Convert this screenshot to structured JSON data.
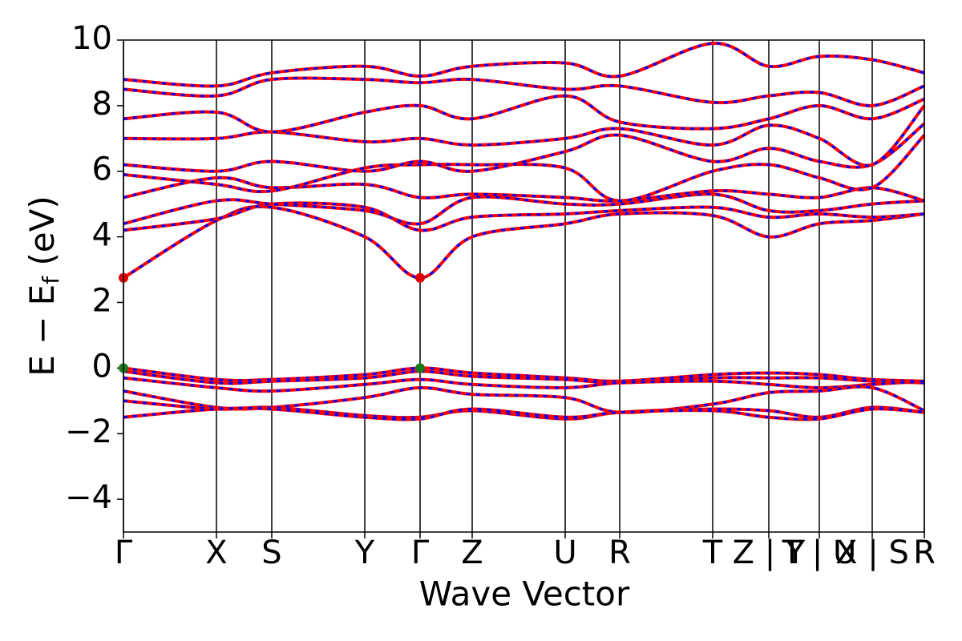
{
  "chart_data": {
    "type": "band",
    "xlabel": "Wave Vector",
    "ylabel": [
      "E − E",
      "f",
      " (eV)"
    ],
    "xlim": [
      0,
      9.99
    ],
    "ylim": [
      -5,
      10
    ],
    "yticks": [
      {
        "value": -4,
        "label": "−4"
      },
      {
        "value": -2,
        "label": "−2"
      },
      0,
      2,
      4,
      6,
      8,
      10
    ],
    "xticks": [
      {
        "value": 0,
        "label": "Γ"
      },
      {
        "value": 1.16,
        "label": "X"
      },
      {
        "value": 1.85,
        "label": "S"
      },
      {
        "value": 3.01,
        "label": "Y"
      },
      {
        "value": 3.7,
        "label": "Γ"
      },
      {
        "value": 4.35,
        "label": "Z"
      },
      {
        "value": 5.51,
        "label": "U"
      },
      {
        "value": 6.19,
        "label": "R"
      },
      {
        "value": 7.35,
        "label": "T"
      },
      {
        "value": 8.05,
        "label": "Z | Y"
      },
      {
        "value": 8.68,
        "label": "T | U"
      },
      {
        "value": 9.34,
        "label": "X | S"
      },
      {
        "value": 9.99,
        "label": "R"
      }
    ],
    "x": [
      0,
      1.16,
      1.85,
      3.01,
      3.7,
      4.35,
      5.51,
      6.19,
      7.35,
      8.05,
      8.68,
      9.34,
      9.99
    ],
    "line_color": "#ff0000",
    "dash_color": "#0000ff",
    "series": [
      {
        "values": [
          0,
          -0.35,
          -0.35,
          -0.2,
          0,
          -0.15,
          -0.3,
          -0.4,
          -0.2,
          -0.15,
          -0.2,
          -0.35,
          -0.4
        ]
      },
      {
        "values": [
          -0.1,
          -0.45,
          -0.4,
          -0.3,
          -0.1,
          -0.25,
          -0.35,
          -0.45,
          -0.3,
          -0.3,
          -0.3,
          -0.4,
          -0.45
        ]
      },
      {
        "values": [
          -0.3,
          -0.6,
          -0.7,
          -0.5,
          -0.35,
          -0.5,
          -0.6,
          -0.45,
          -0.4,
          -0.5,
          -0.6,
          -0.5,
          -0.4
        ]
      },
      {
        "values": [
          -0.7,
          -1.2,
          -1.2,
          -0.9,
          -0.6,
          -0.8,
          -0.9,
          -1.35,
          -1.1,
          -0.75,
          -0.7,
          -0.6,
          -1.3
        ]
      },
      {
        "values": [
          -1.0,
          -1.25,
          -1.2,
          -1.45,
          -1.5,
          -1.3,
          -1.55,
          -1.35,
          -1.25,
          -1.3,
          -1.5,
          -1.2,
          -1.35
        ]
      },
      {
        "values": [
          -1.5,
          -1.25,
          -1.25,
          -1.5,
          -1.55,
          -1.25,
          -1.5,
          -1.35,
          -1.3,
          -1.5,
          -1.55,
          -1.25,
          -1.35
        ]
      },
      {
        "values": [
          2.75,
          4.5,
          4.9,
          4.0,
          2.75,
          4.0,
          4.4,
          4.7,
          4.65,
          4.0,
          4.4,
          4.5,
          4.7
        ]
      },
      {
        "values": [
          4.2,
          4.55,
          5.0,
          4.9,
          4.2,
          4.6,
          4.7,
          4.8,
          4.9,
          4.6,
          4.7,
          4.6,
          4.7
        ]
      },
      {
        "values": [
          4.4,
          5.1,
          5.0,
          4.8,
          4.4,
          5.2,
          5.0,
          5.0,
          5.3,
          4.8,
          4.8,
          5.0,
          5.1
        ]
      },
      {
        "values": [
          5.2,
          5.8,
          5.5,
          5.6,
          5.2,
          5.3,
          5.2,
          5.1,
          5.4,
          5.3,
          5.2,
          5.5,
          5.1
        ]
      },
      {
        "values": [
          5.9,
          5.6,
          5.4,
          6.1,
          6.2,
          6.2,
          6.1,
          5.1,
          6.0,
          6.2,
          5.8,
          5.5,
          7.1
        ]
      },
      {
        "values": [
          6.2,
          6.0,
          6.3,
          6.0,
          6.3,
          6.0,
          6.6,
          7.1,
          6.3,
          6.7,
          6.3,
          6.2,
          7.45
        ]
      },
      {
        "values": [
          7.0,
          7.0,
          7.2,
          6.9,
          7.0,
          6.8,
          7.0,
          7.3,
          6.8,
          7.4,
          7.0,
          6.2,
          8.0
        ]
      },
      {
        "values": [
          7.6,
          7.8,
          7.2,
          7.8,
          8.0,
          7.6,
          8.3,
          7.5,
          7.3,
          7.6,
          8.0,
          7.6,
          8.2
        ]
      },
      {
        "values": [
          8.5,
          8.3,
          8.8,
          8.8,
          8.7,
          8.8,
          8.5,
          8.6,
          8.1,
          8.3,
          8.4,
          8.0,
          8.6
        ]
      },
      {
        "values": [
          8.8,
          8.6,
          9.0,
          9.2,
          8.9,
          9.2,
          9.3,
          8.9,
          9.9,
          9.2,
          9.5,
          9.4,
          9.0
        ]
      }
    ],
    "markers": [
      {
        "x": 0,
        "y": 0,
        "color": "#1a7a1a"
      },
      {
        "x": 3.7,
        "y": 0,
        "color": "#1a7a1a"
      },
      {
        "x": 0,
        "y": 2.75,
        "color": "#e00000"
      },
      {
        "x": 3.7,
        "y": 2.75,
        "color": "#e00000"
      }
    ]
  }
}
